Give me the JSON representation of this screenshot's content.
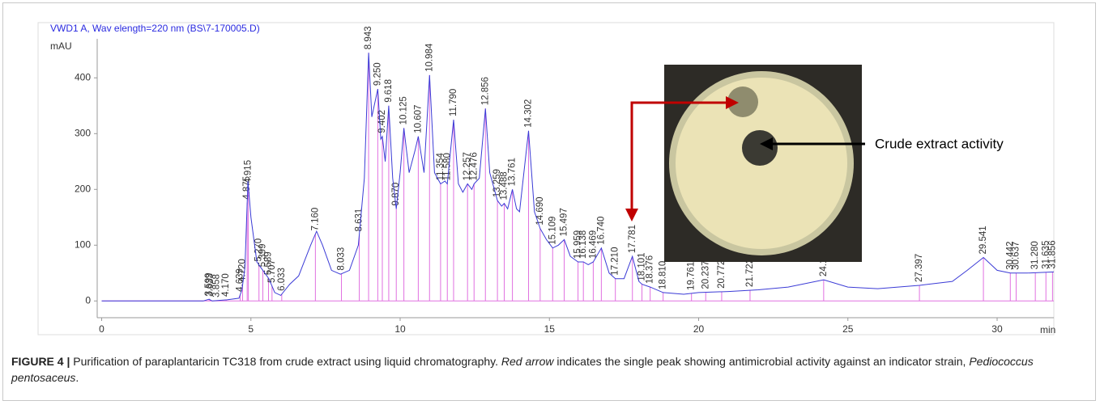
{
  "chart_data": {
    "type": "line",
    "title": "VWD1 A, Wav elength=220 nm (BS\\7-170005.D)",
    "ylabel": "mAU",
    "xlabel": "min",
    "xlim": [
      -0.15,
      31.9
    ],
    "ylim": [
      -30,
      470
    ],
    "xticks": [
      0,
      5,
      10,
      15,
      20,
      25,
      30
    ],
    "yticks": [
      0,
      100,
      200,
      300,
      400
    ],
    "x": [
      0,
      3.4,
      3.6,
      3.7,
      4.2,
      4.6,
      4.7,
      4.8,
      4.9,
      5.0,
      5.2,
      5.4,
      5.6,
      5.8,
      6.0,
      6.3,
      6.6,
      7.0,
      7.2,
      7.4,
      7.7,
      8.0,
      8.3,
      8.6,
      8.8,
      8.943,
      9.05,
      9.25,
      9.35,
      9.402,
      9.5,
      9.618,
      9.75,
      9.87,
      10.0,
      10.125,
      10.3,
      10.5,
      10.607,
      10.8,
      10.984,
      11.15,
      11.354,
      11.5,
      11.58,
      11.79,
      11.95,
      12.1,
      12.257,
      12.4,
      12.476,
      12.65,
      12.856,
      13.0,
      13.259,
      13.4,
      13.488,
      13.6,
      13.761,
      13.9,
      14.0,
      14.302,
      14.5,
      14.69,
      14.9,
      15.109,
      15.3,
      15.497,
      15.7,
      15.959,
      16.138,
      16.3,
      16.469,
      16.74,
      17.0,
      17.21,
      17.5,
      17.781,
      18.0,
      18.101,
      18.376,
      18.81,
      19.5,
      20.0,
      21.0,
      22.0,
      23.0,
      24.189,
      25.0,
      26.0,
      27.397,
      28.5,
      29.0,
      29.541,
      30.0,
      30.442,
      31.0,
      31.9
    ],
    "series": [
      {
        "color": "#3b3bd6",
        "values": [
          0,
          0,
          3,
          0,
          2,
          5,
          20,
          60,
          215,
          150,
          70,
          55,
          40,
          15,
          10,
          30,
          45,
          100,
          125,
          100,
          55,
          48,
          55,
          100,
          220,
          445,
          330,
          380,
          290,
          295,
          250,
          350,
          220,
          165,
          230,
          310,
          230,
          270,
          295,
          230,
          405,
          230,
          210,
          215,
          210,
          325,
          210,
          195,
          210,
          200,
          210,
          220,
          345,
          230,
          180,
          170,
          175,
          165,
          200,
          165,
          160,
          305,
          160,
          130,
          110,
          95,
          100,
          110,
          80,
          70,
          70,
          65,
          70,
          95,
          50,
          40,
          40,
          80,
          35,
          30,
          25,
          15,
          12,
          15,
          17,
          20,
          25,
          38,
          25,
          22,
          28,
          35,
          55,
          78,
          55,
          50,
          50,
          52
        ]
      }
    ],
    "peaks": [
      {
        "value": 3.599,
        "label": "3.599"
      },
      {
        "value": 3.633,
        "label": "3.633"
      },
      {
        "value": 3.858,
        "label": "3.858"
      },
      {
        "value": 4.17,
        "label": "4.170"
      },
      {
        "value": 4.639,
        "label": "4.639"
      },
      {
        "value": 4.72,
        "label": "4.720"
      },
      {
        "value": 4.875,
        "label": "4.875"
      },
      {
        "value": 4.915,
        "label": "4.915"
      },
      {
        "value": 5.27,
        "label": "5.270"
      },
      {
        "value": 5.399,
        "label": "5.399"
      },
      {
        "value": 5.589,
        "label": "5.589"
      },
      {
        "value": 5.707,
        "label": "5.707"
      },
      {
        "value": 6.033,
        "label": "6.033"
      },
      {
        "value": 7.16,
        "label": "7.160"
      },
      {
        "value": 8.033,
        "label": "8.033"
      },
      {
        "value": 8.631,
        "label": "8.631"
      },
      {
        "value": 8.943,
        "label": "8.943"
      },
      {
        "value": 9.25,
        "label": "9.250"
      },
      {
        "value": 9.402,
        "label": "9.402"
      },
      {
        "value": 9.618,
        "label": "9.618"
      },
      {
        "value": 9.87,
        "label": "9.870"
      },
      {
        "value": 10.125,
        "label": "10.125"
      },
      {
        "value": 10.607,
        "label": "10.607"
      },
      {
        "value": 10.984,
        "label": "10.984"
      },
      {
        "value": 11.354,
        "label": "11.354"
      },
      {
        "value": 11.58,
        "label": "11.580"
      },
      {
        "value": 11.79,
        "label": "11.790"
      },
      {
        "value": 12.257,
        "label": "12.257"
      },
      {
        "value": 12.476,
        "label": "12.476"
      },
      {
        "value": 12.856,
        "label": "12.856"
      },
      {
        "value": 13.259,
        "label": "13.259"
      },
      {
        "value": 13.488,
        "label": "13.488"
      },
      {
        "value": 13.761,
        "label": "13.761"
      },
      {
        "value": 14.302,
        "label": "14.302"
      },
      {
        "value": 14.69,
        "label": "14.690"
      },
      {
        "value": 15.109,
        "label": "15.109"
      },
      {
        "value": 15.497,
        "label": "15.497"
      },
      {
        "value": 15.959,
        "label": "15.959"
      },
      {
        "value": 16.138,
        "label": "16.138"
      },
      {
        "value": 16.469,
        "label": "16.469"
      },
      {
        "value": 16.74,
        "label": "16.740"
      },
      {
        "value": 17.21,
        "label": "17.210"
      },
      {
        "value": 17.781,
        "label": "17.781"
      },
      {
        "value": 18.101,
        "label": "18.101"
      },
      {
        "value": 18.376,
        "label": "18.376"
      },
      {
        "value": 18.81,
        "label": "18.810"
      },
      {
        "value": 19.761,
        "label": "19.761"
      },
      {
        "value": 20.237,
        "label": "20.237"
      },
      {
        "value": 20.772,
        "label": "20.772"
      },
      {
        "value": 21.722,
        "label": "21.722"
      },
      {
        "value": 24.189,
        "label": "24.189"
      },
      {
        "value": 27.397,
        "label": "27.397"
      },
      {
        "value": 29.541,
        "label": "29.541"
      },
      {
        "value": 30.442,
        "label": "30.442"
      },
      {
        "value": 30.637,
        "label": "30.637"
      },
      {
        "value": 31.28,
        "label": "31.280"
      },
      {
        "value": 31.635,
        "label": "31.635"
      },
      {
        "value": 31.856,
        "label": "31.856"
      }
    ],
    "annotation": "Crude extract activity"
  },
  "caption": {
    "label": "FIGURE 4 |",
    "parts": [
      "Purification of paraplantaricin TC318 from crude extract using liquid chromatography. ",
      "Red arrow",
      " indicates the single peak showing antimicrobial activity against an indicator strain, ",
      "Pediococcus pentosaceus",
      "."
    ]
  }
}
